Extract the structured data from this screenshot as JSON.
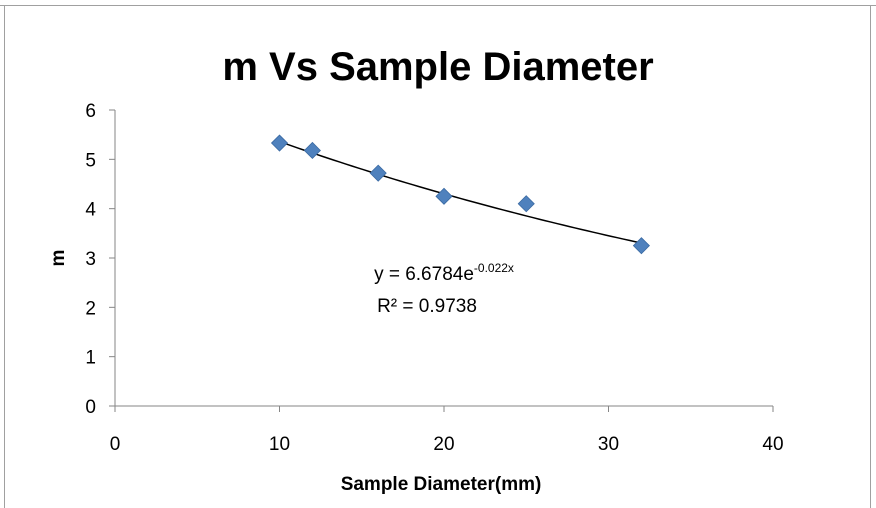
{
  "chart_data": {
    "type": "scatter",
    "title": "m Vs Sample Diameter",
    "xlabel": "Sample Diameter(mm)",
    "ylabel": "m",
    "xlim": [
      0,
      40
    ],
    "ylim": [
      0,
      6
    ],
    "x_ticks": [
      0,
      10,
      20,
      30,
      40
    ],
    "y_ticks": [
      0,
      1,
      2,
      3,
      4,
      5,
      6
    ],
    "grid": false,
    "legend": "none",
    "marker": "diamond",
    "marker_color": "#4F81BD",
    "series": [
      {
        "x": [
          10,
          12,
          16,
          20,
          25,
          32
        ],
        "y": [
          5.33,
          5.18,
          4.72,
          4.25,
          4.1,
          3.25
        ]
      }
    ],
    "trendline": {
      "type": "exponential",
      "a": 6.6784,
      "b": -0.022,
      "x_range": [
        10,
        32
      ],
      "equation_base": "y = 6.6784e",
      "equation_exponent": "-0.022x",
      "r2_text": "R² = 0.9738"
    }
  }
}
